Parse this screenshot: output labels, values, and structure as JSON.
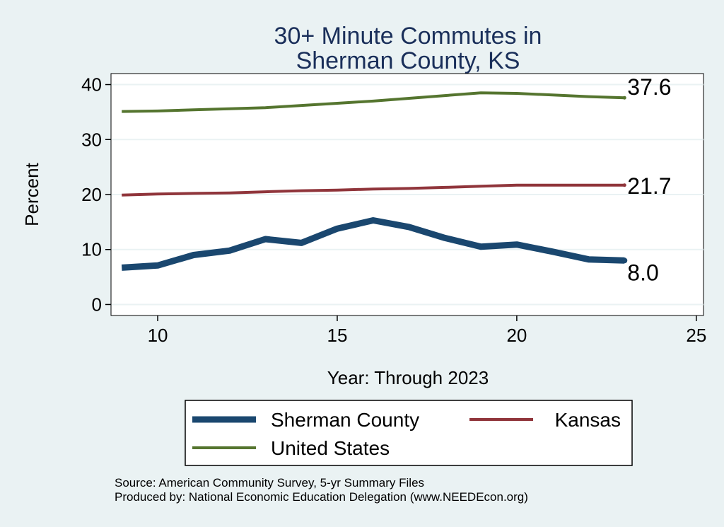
{
  "chart_data": {
    "type": "line",
    "title_lines": [
      "30+ Minute Commutes in",
      "Sherman County, KS"
    ],
    "xlabel": "Year: Through 2023",
    "ylabel": "Percent",
    "xlim": [
      8.7,
      25.2
    ],
    "ylim": [
      -2,
      42
    ],
    "xticks": [
      10,
      15,
      20,
      25
    ],
    "yticks": [
      0,
      10,
      20,
      30,
      40
    ],
    "grid": true,
    "legend_position": "bottom",
    "series": [
      {
        "name": "Sherman County",
        "color": "#1a476f",
        "x": [
          9,
          10,
          11,
          12,
          13,
          14,
          15,
          16,
          17,
          18,
          19,
          20,
          21,
          22,
          23
        ],
        "values": [
          6.7,
          7.1,
          9.0,
          9.8,
          11.9,
          11.2,
          13.8,
          15.3,
          14.1,
          12.1,
          10.5,
          10.9,
          9.6,
          8.2,
          8.0
        ],
        "end_label": "8.0"
      },
      {
        "name": "Kansas",
        "color": "#90353b",
        "x": [
          9,
          10,
          11,
          12,
          13,
          14,
          15,
          16,
          17,
          18,
          19,
          20,
          21,
          22,
          23
        ],
        "values": [
          19.9,
          20.1,
          20.2,
          20.3,
          20.5,
          20.7,
          20.8,
          21.0,
          21.1,
          21.3,
          21.5,
          21.7,
          21.7,
          21.7,
          21.7
        ],
        "end_label": "21.7"
      },
      {
        "name": "United States",
        "color": "#55752f",
        "x": [
          9,
          10,
          11,
          12,
          13,
          14,
          15,
          16,
          17,
          18,
          19,
          20,
          21,
          22,
          23
        ],
        "values": [
          35.1,
          35.2,
          35.4,
          35.6,
          35.8,
          36.2,
          36.6,
          37.0,
          37.5,
          38.0,
          38.5,
          38.4,
          38.1,
          37.8,
          37.6
        ],
        "end_label": "37.6"
      }
    ]
  },
  "source": {
    "line1": "Source: American Community Survey, 5-yr Summary Files",
    "line2": "Produced by: National Economic Education Delegation (www.NEEDEcon.org)"
  }
}
